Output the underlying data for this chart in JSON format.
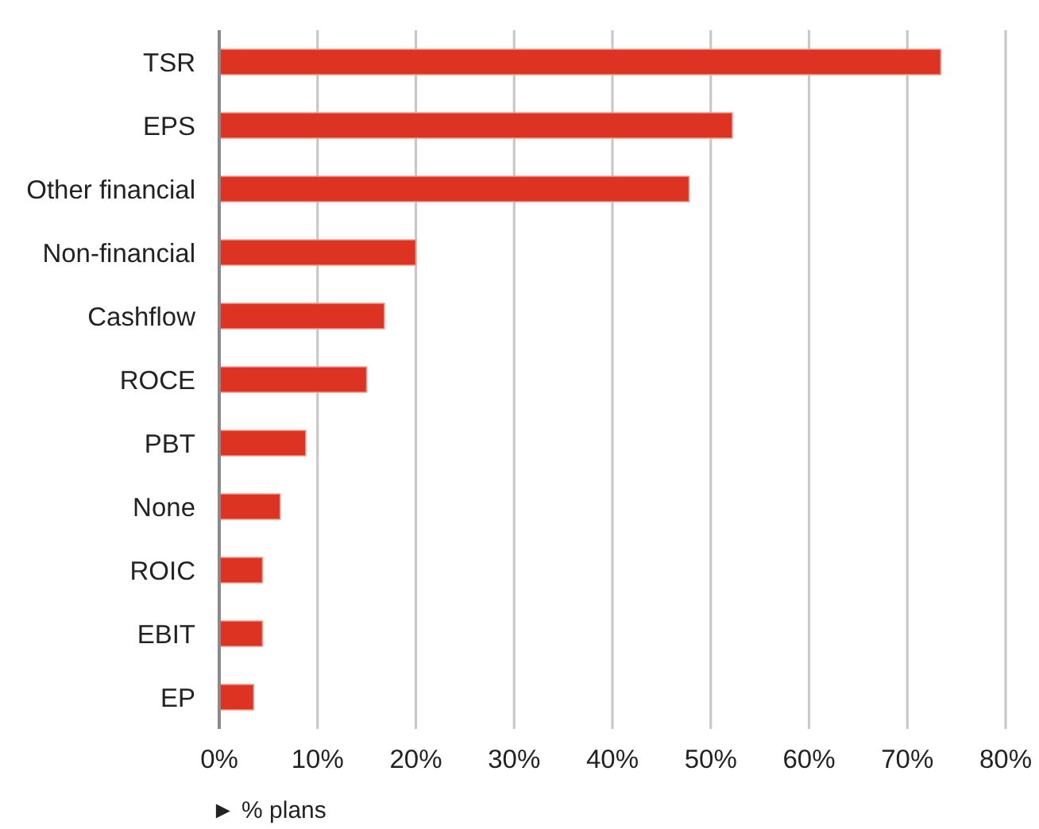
{
  "chart_data": {
    "type": "bar",
    "orientation": "horizontal",
    "categories": [
      "TSR",
      "EPS",
      "Other financial",
      "Non-financial",
      "Cashflow",
      "ROCE",
      "PBT",
      "None",
      "ROIC",
      "EBIT",
      "EP"
    ],
    "values": [
      73.4,
      52.2,
      47.8,
      20,
      16.8,
      15,
      8.8,
      6.2,
      4.4,
      4.4,
      3.5
    ],
    "color": "#dc3322",
    "xlim": [
      0,
      80
    ],
    "xticks": [
      {
        "value": 0,
        "label": "0%"
      },
      {
        "value": 10,
        "label": "10%"
      },
      {
        "value": 20,
        "label": "20%"
      },
      {
        "value": 30,
        "label": "30%"
      },
      {
        "value": 40,
        "label": "40%"
      },
      {
        "value": 50,
        "label": "50%"
      },
      {
        "value": 60,
        "label": "60%"
      },
      {
        "value": 70,
        "label": "70%"
      },
      {
        "value": 80,
        "label": "80%"
      }
    ],
    "xlabel": "► % plans",
    "grid": "x"
  }
}
